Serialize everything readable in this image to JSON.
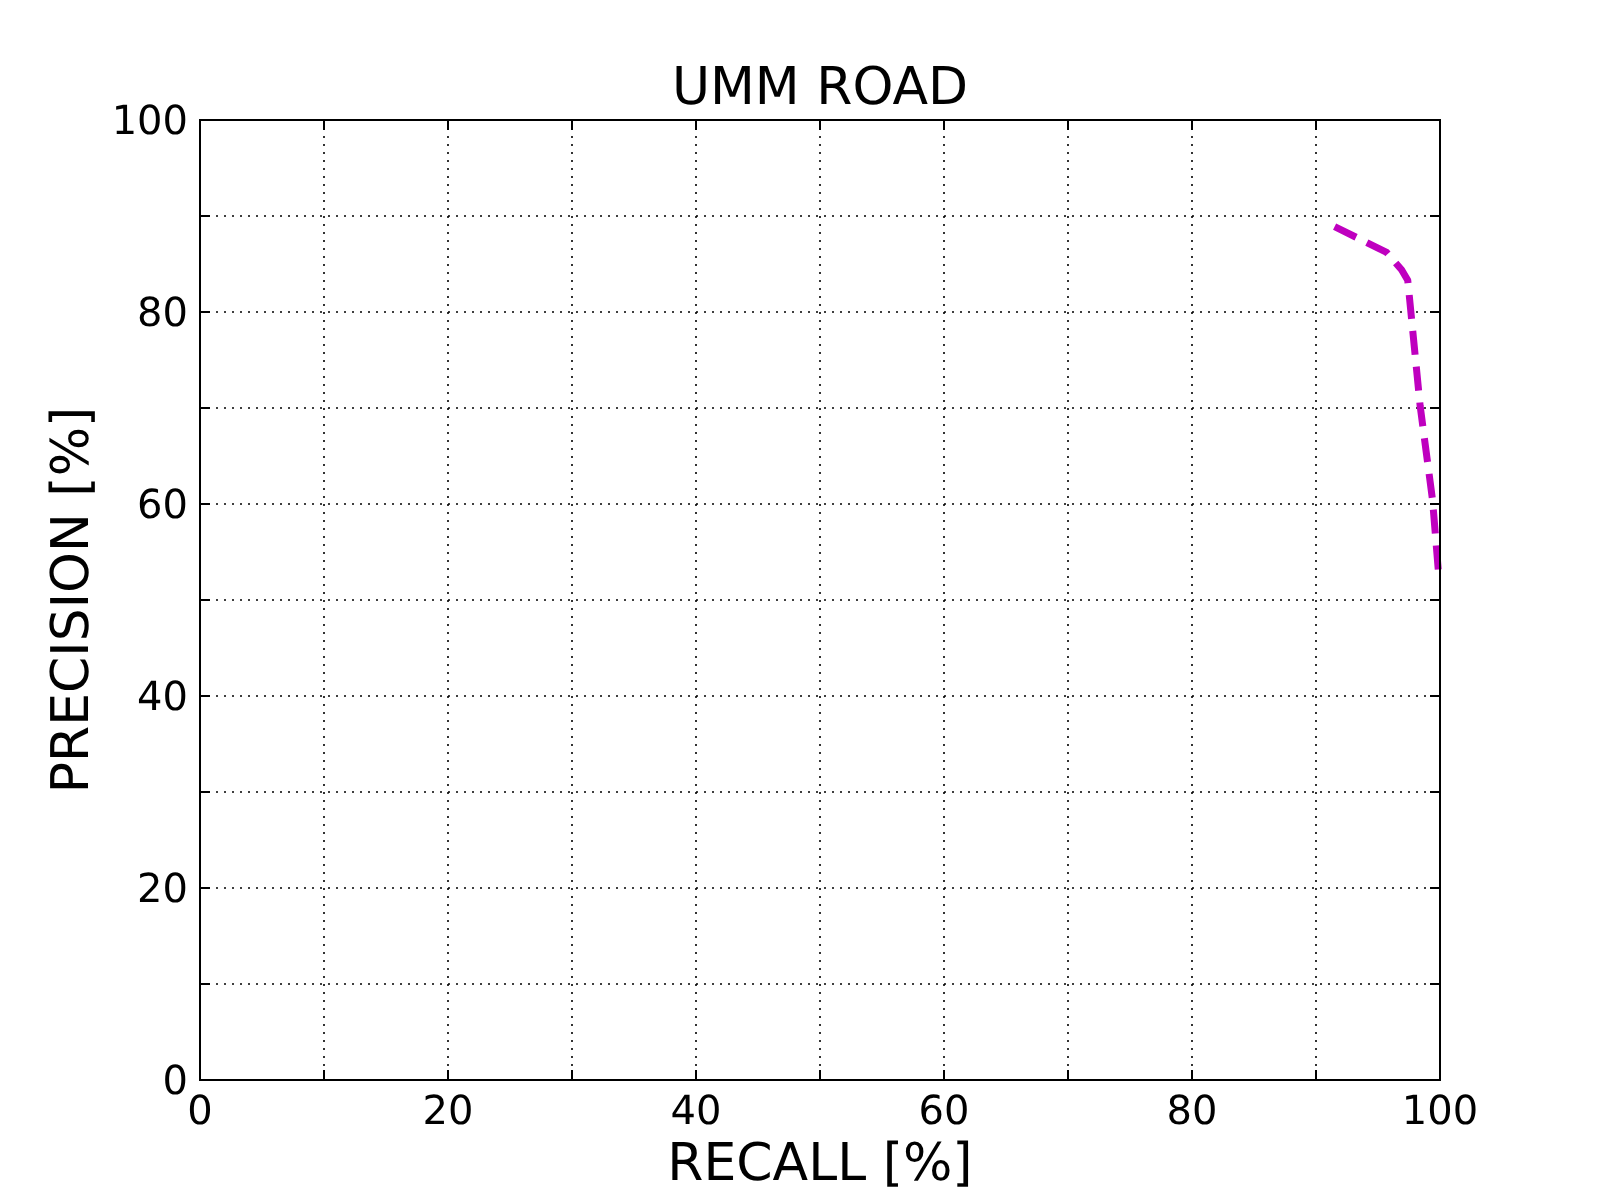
{
  "chart_data": {
    "type": "line",
    "title": "UMM ROAD",
    "xlabel": "RECALL [%]",
    "ylabel": "PRECISION [%]",
    "xlim": [
      0,
      100
    ],
    "ylim": [
      0,
      100
    ],
    "xticks": [
      0,
      {
        "value": 10,
        "label": null
      },
      20,
      {
        "value": 30,
        "label": null
      },
      40,
      {
        "value": 50,
        "label": null
      },
      60,
      {
        "value": 70,
        "label": null
      },
      80,
      {
        "value": 90,
        "label": null
      },
      100
    ],
    "yticks": [
      0,
      {
        "value": 10,
        "label": null
      },
      20,
      {
        "value": 30,
        "label": null
      },
      40,
      {
        "value": 50,
        "label": null
      },
      60,
      {
        "value": 70,
        "label": null
      },
      80,
      {
        "value": 90,
        "label": null
      },
      100
    ],
    "grid": true,
    "line_style": "dashed",
    "series": [
      {
        "color": "#bf00bf",
        "x": [
          91.5,
          95.7,
          96.9,
          97.4,
          98.4,
          99.4,
          99.9
        ],
        "values": [
          88.9,
          86.2,
          84.4,
          83.3,
          70.2,
          60.4,
          52.5
        ]
      }
    ]
  }
}
